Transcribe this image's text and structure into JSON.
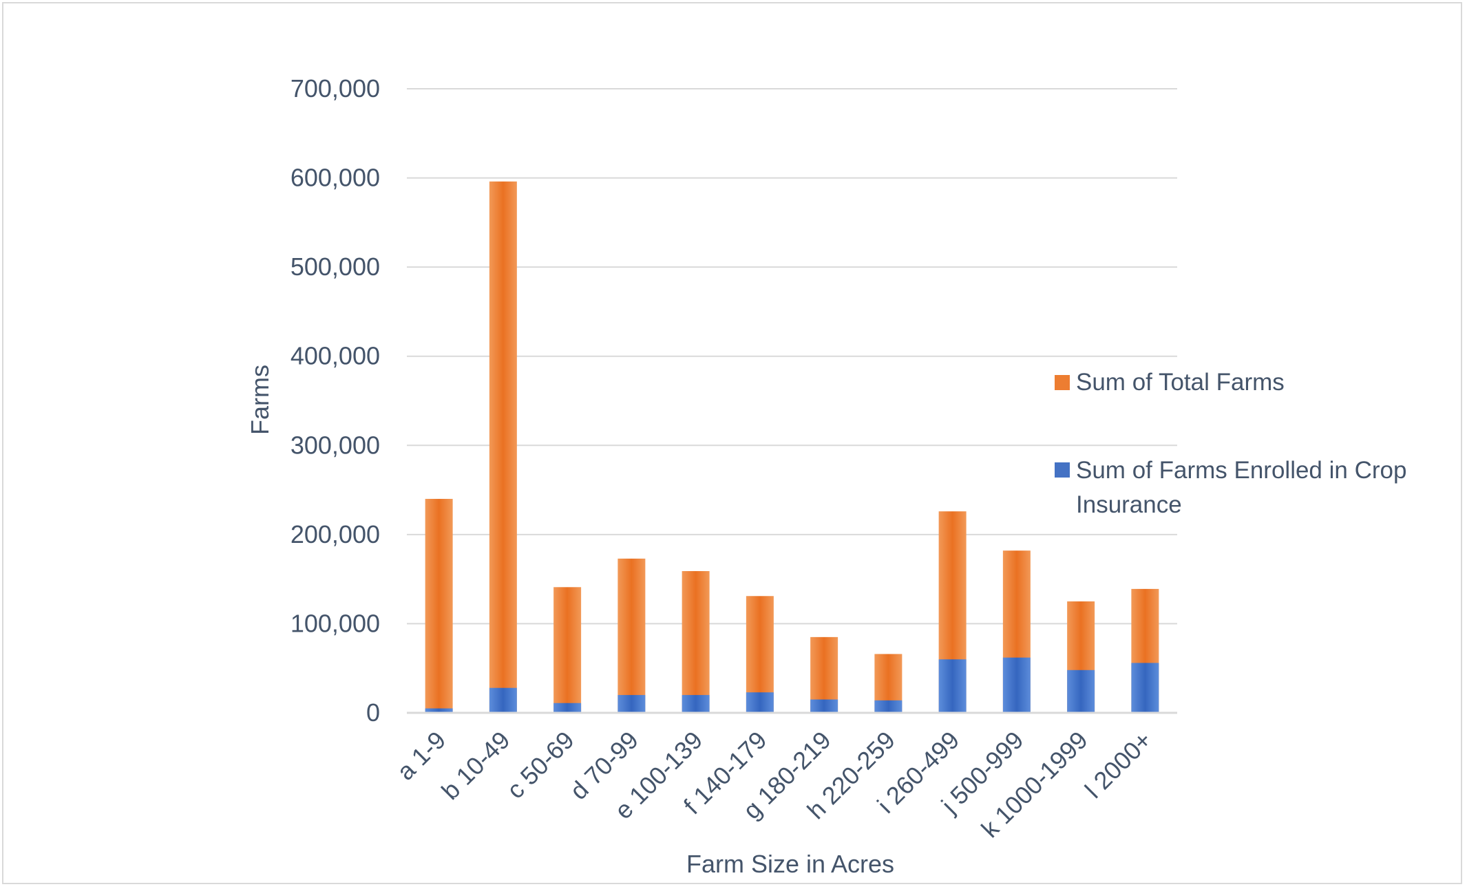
{
  "chart_data": {
    "type": "bar",
    "stacked": false,
    "overlapped": true,
    "categories": [
      "a 1-9",
      "b 10-49",
      "c 50-69",
      "d 70-99",
      "e 100-139",
      "f 140-179",
      "g 180-219",
      "h 220-259",
      "i 260-499",
      "j 500-999",
      "k 1000-1999",
      "l 2000+"
    ],
    "series": [
      {
        "name": "Sum of Total Farms",
        "color": "#ed7d31",
        "values": [
          240000,
          596000,
          141000,
          173000,
          159000,
          131000,
          85000,
          66000,
          226000,
          182000,
          125000,
          139000
        ]
      },
      {
        "name": "Sum of  Farms Enrolled in Crop Insurance",
        "color": "#4472c4",
        "values": [
          5000,
          28000,
          11000,
          20000,
          20000,
          23000,
          15000,
          14000,
          60000,
          62000,
          48000,
          56000
        ]
      }
    ],
    "title": "",
    "xlabel": "Farm Size in Acres",
    "ylabel": "Farms",
    "ylim": [
      0,
      700000
    ],
    "yticks": [
      0,
      100000,
      200000,
      300000,
      400000,
      500000,
      600000,
      700000
    ],
    "ytick_labels": [
      "0",
      "100,000",
      "200,000",
      "300,000",
      "400,000",
      "500,000",
      "600,000",
      "700,000"
    ],
    "grid": true,
    "legend_position": "right",
    "legend": {
      "total_line1": "Sum of Total Farms",
      "enrolled_line1": "Sum of  Farms Enrolled in Crop",
      "enrolled_line2": "Insurance"
    }
  }
}
